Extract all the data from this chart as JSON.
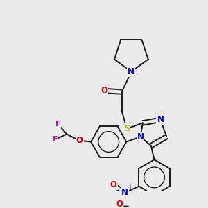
{
  "bg_color": "#ebebeb",
  "bond_color": "#1a1a1a",
  "atom_colors": {
    "N": "#0000cc",
    "O": "#cc0000",
    "S": "#bbbb00",
    "F": "#cc00cc",
    "C": "#1a1a1a"
  },
  "figsize": [
    3.0,
    3.0
  ],
  "dpi": 100,
  "lw": 1.4,
  "fs": 8.5
}
